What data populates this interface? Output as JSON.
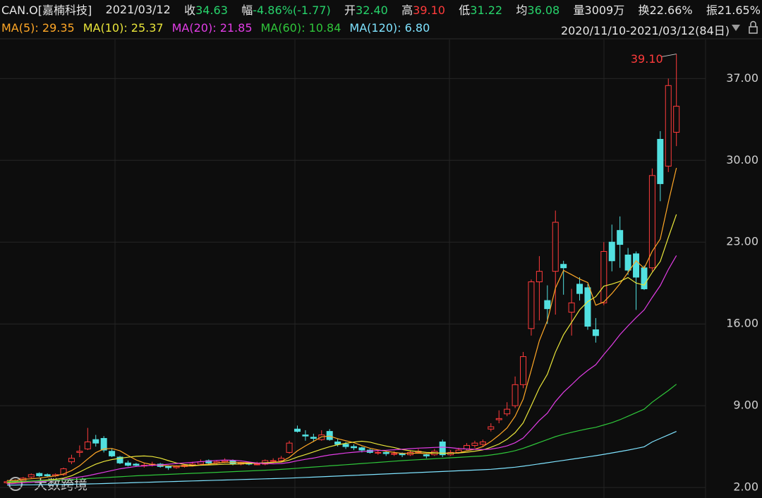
{
  "header": {
    "symbol": "CAN.O[嘉楠科技]",
    "date": "2021/03/12",
    "items": [
      {
        "label": "收",
        "value": "34.63",
        "color": "#27d36b"
      },
      {
        "label": "幅",
        "value": "-4.86%(-1.77)",
        "color": "#27d36b"
      },
      {
        "label": "开",
        "value": "32.40",
        "color": "#27d36b"
      },
      {
        "label": "高",
        "value": "39.10",
        "color": "#ff3b3b"
      },
      {
        "label": "低",
        "value": "31.22",
        "color": "#27d36b"
      },
      {
        "label": "均",
        "value": "36.08",
        "color": "#27d36b"
      },
      {
        "label": "量",
        "value": "3009万",
        "color": "#e6e6e6"
      },
      {
        "label": "换",
        "value": "22.66%",
        "color": "#e6e6e6"
      },
      {
        "label": "振",
        "value": "21.65%",
        "color": "#e6e6e6"
      }
    ]
  },
  "watermark": "大数跨境",
  "chart_data": {
    "type": "candlestick",
    "range": "2020/11/10-2021/03/12(84日)",
    "up_color": "#ff3b3b",
    "down_color": "#52e0e0",
    "max_label": "39.10",
    "ylim": [
      1.1,
      40.1
    ],
    "yticks": [
      {
        "value": 2,
        "label": "2.00"
      },
      {
        "value": 9,
        "label": "9.00"
      },
      {
        "value": 16,
        "label": "16.00"
      },
      {
        "value": 23,
        "label": "23.00"
      },
      {
        "value": 30,
        "label": "30.00"
      },
      {
        "value": 37,
        "label": "37.00"
      }
    ],
    "grid": true,
    "open": [
      2.4,
      2.5,
      2.6,
      2.9,
      3.2,
      3.1,
      3.0,
      3.1,
      4.2,
      5.0,
      5.3,
      6.1,
      6.2,
      5.1,
      4.6,
      4.1,
      4.0,
      3.9,
      3.9,
      4.0,
      3.8,
      3.7,
      3.8,
      3.9,
      4.0,
      4.3,
      4.1,
      4.2,
      4.3,
      4.0,
      4.1,
      4.0,
      4.0,
      4.3,
      4.3,
      5.0,
      7.0,
      6.5,
      6.3,
      6.1,
      6.8,
      5.9,
      5.7,
      5.5,
      5.4,
      5.2,
      5.0,
      5.0,
      4.9,
      4.9,
      4.8,
      5.0,
      4.8,
      4.8,
      5.9,
      4.8,
      5.0,
      5.3,
      5.6,
      5.7,
      7.0,
      7.8,
      8.3,
      9.0,
      10.8,
      15.6,
      19.6,
      18.0,
      20.5,
      21.1,
      17.0,
      19.4,
      19.1,
      15.5,
      17.8,
      23.0,
      24.0,
      21.9,
      22.0,
      20.8,
      20.8,
      31.8,
      29.5,
      32.4
    ],
    "high": [
      2.6,
      2.7,
      2.9,
      3.2,
      3.3,
      3.2,
      3.2,
      3.7,
      4.8,
      5.6,
      7.1,
      6.5,
      6.4,
      5.3,
      4.7,
      4.3,
      4.1,
      4.1,
      4.2,
      4.1,
      3.9,
      3.9,
      4.0,
      4.2,
      4.4,
      4.4,
      4.3,
      4.5,
      4.4,
      4.2,
      4.2,
      4.2,
      4.4,
      4.5,
      4.7,
      6.0,
      7.3,
      6.9,
      6.6,
      6.9,
      7.0,
      6.2,
      5.9,
      5.7,
      5.5,
      5.3,
      5.2,
      5.1,
      5.1,
      5.0,
      5.2,
      5.3,
      4.9,
      5.3,
      6.1,
      5.2,
      5.4,
      5.8,
      6.0,
      6.1,
      7.5,
      8.6,
      9.3,
      11.5,
      13.6,
      19.8,
      21.8,
      19.3,
      25.7,
      21.4,
      19.0,
      20.0,
      19.4,
      16.5,
      23.0,
      24.5,
      25.2,
      22.5,
      22.2,
      21.0,
      29.3,
      32.5,
      37.0,
      39.1
    ],
    "low": [
      2.3,
      2.4,
      2.5,
      2.8,
      2.9,
      2.9,
      2.9,
      3.0,
      4.0,
      4.6,
      5.2,
      5.5,
      5.0,
      4.6,
      4.0,
      3.8,
      3.8,
      3.7,
      3.8,
      3.7,
      3.5,
      3.6,
      3.7,
      3.8,
      3.9,
      4.0,
      4.0,
      4.1,
      3.9,
      3.9,
      3.9,
      3.9,
      3.9,
      4.1,
      4.2,
      4.9,
      6.7,
      6.0,
      5.9,
      6.0,
      6.0,
      5.5,
      5.3,
      5.2,
      5.0,
      4.9,
      4.8,
      4.7,
      4.7,
      4.6,
      4.7,
      4.9,
      4.5,
      4.7,
      4.6,
      4.7,
      4.9,
      5.2,
      5.4,
      5.5,
      6.8,
      7.5,
      8.1,
      8.8,
      10.5,
      15.0,
      16.3,
      16.0,
      16.8,
      18.5,
      15.0,
      18.0,
      15.5,
      14.4,
      17.6,
      20.5,
      20.8,
      20.2,
      17.2,
      18.9,
      20.5,
      26.5,
      29.0,
      31.22
    ],
    "close": [
      2.5,
      2.6,
      2.8,
      3.1,
      3.0,
      3.0,
      3.1,
      3.6,
      4.5,
      5.1,
      5.9,
      5.8,
      5.2,
      4.7,
      4.1,
      3.9,
      3.9,
      3.9,
      4.0,
      3.8,
      3.7,
      3.8,
      3.9,
      4.0,
      4.2,
      4.1,
      4.2,
      4.3,
      4.0,
      4.1,
      4.0,
      4.0,
      4.3,
      4.3,
      4.5,
      5.8,
      6.8,
      6.4,
      6.2,
      6.5,
      6.1,
      5.7,
      5.5,
      5.4,
      5.2,
      5.0,
      5.0,
      4.9,
      4.9,
      4.8,
      5.0,
      5.1,
      4.7,
      5.1,
      4.8,
      5.0,
      5.2,
      5.6,
      5.8,
      5.9,
      7.2,
      7.9,
      8.7,
      10.8,
      13.2,
      19.6,
      20.5,
      17.3,
      24.7,
      20.8,
      17.8,
      18.6,
      15.8,
      15.0,
      22.2,
      21.4,
      22.8,
      20.6,
      20.0,
      19.0,
      28.7,
      28.0,
      36.4,
      34.63
    ],
    "series": [
      {
        "name": "MA(5):",
        "color": "#ffa726",
        "value_label": "29.35",
        "values": [
          2.6,
          2.6,
          2.7,
          2.75,
          2.8,
          2.9,
          3.0,
          3.16,
          3.44,
          3.86,
          4.44,
          4.98,
          5.3,
          5.34,
          5.14,
          4.74,
          4.36,
          4.1,
          3.96,
          3.9,
          3.86,
          3.84,
          3.84,
          3.84,
          3.92,
          4.0,
          4.08,
          4.16,
          4.16,
          4.14,
          4.12,
          4.08,
          4.08,
          4.14,
          4.22,
          4.58,
          5.14,
          5.56,
          5.94,
          6.34,
          6.4,
          6.18,
          6.0,
          5.84,
          5.58,
          5.36,
          5.22,
          5.1,
          5.0,
          4.92,
          4.92,
          4.94,
          4.9,
          4.94,
          4.94,
          4.94,
          4.96,
          5.14,
          5.28,
          5.5,
          5.94,
          6.48,
          7.1,
          8.1,
          9.56,
          12.04,
          14.56,
          16.28,
          19.06,
          20.58,
          20.22,
          19.84,
          19.54,
          17.6,
          17.88,
          18.6,
          19.44,
          20.4,
          21.4,
          20.76,
          22.22,
          23.26,
          26.42,
          29.35
        ]
      },
      {
        "name": "MA(10):",
        "color": "#e9e53a",
        "value_label": "25.37",
        "values": [
          2.4,
          2.45,
          2.5,
          2.55,
          2.6,
          2.65,
          2.7,
          2.8,
          3.0,
          3.33,
          3.67,
          3.99,
          4.23,
          4.39,
          4.5,
          4.59,
          4.67,
          4.7,
          4.65,
          4.52,
          4.3,
          4.1,
          3.97,
          3.9,
          3.91,
          3.93,
          3.96,
          4.0,
          4.0,
          4.03,
          4.06,
          4.08,
          4.12,
          4.15,
          4.18,
          4.35,
          4.61,
          4.82,
          5.04,
          5.28,
          5.49,
          5.66,
          5.78,
          5.89,
          5.96,
          5.88,
          5.7,
          5.55,
          5.42,
          5.25,
          5.14,
          5.08,
          5.0,
          4.97,
          4.93,
          4.93,
          4.95,
          5.02,
          5.11,
          5.22,
          5.44,
          5.72,
          6.12,
          6.69,
          7.53,
          8.99,
          10.52,
          11.69,
          13.58,
          15.07,
          16.13,
          17.2,
          17.91,
          18.33,
          19.23,
          19.41,
          19.64,
          19.97,
          19.5,
          19.32,
          20.41,
          21.35,
          23.41,
          25.37
        ]
      },
      {
        "name": "MA(20):",
        "color": "#e23de6",
        "value_label": "21.85",
        "values": [
          2.3,
          2.35,
          2.4,
          2.45,
          2.5,
          2.55,
          2.6,
          2.7,
          2.8,
          2.9,
          3.0,
          3.15,
          3.3,
          3.45,
          3.6,
          3.7,
          3.8,
          3.85,
          3.9,
          3.93,
          3.99,
          4.05,
          4.1,
          4.15,
          4.21,
          4.26,
          4.32,
          4.35,
          4.33,
          4.28,
          4.18,
          4.09,
          4.05,
          4.03,
          4.05,
          4.14,
          4.29,
          4.41,
          4.52,
          4.66,
          4.78,
          4.87,
          4.95,
          5.02,
          5.07,
          5.12,
          5.16,
          5.19,
          5.23,
          5.27,
          5.32,
          5.37,
          5.39,
          5.43,
          5.45,
          5.41,
          5.33,
          5.29,
          5.27,
          5.24,
          5.29,
          5.4,
          5.56,
          5.83,
          6.23,
          6.96,
          7.74,
          8.36,
          9.35,
          10.15,
          10.79,
          11.46,
          12.02,
          12.51,
          13.38,
          14.2,
          15.08,
          15.83,
          16.54,
          17.2,
          18.27,
          19.28,
          20.66,
          21.85
        ]
      },
      {
        "name": "MA(60):",
        "color": "#2fc63a",
        "value_label": "10.84",
        "values": [
          2.5,
          2.52,
          2.54,
          2.56,
          2.58,
          2.6,
          2.62,
          2.65,
          2.68,
          2.72,
          2.76,
          2.8,
          2.84,
          2.88,
          2.92,
          2.96,
          3.0,
          3.03,
          3.06,
          3.09,
          3.12,
          3.15,
          3.18,
          3.21,
          3.24,
          3.27,
          3.3,
          3.33,
          3.36,
          3.39,
          3.42,
          3.45,
          3.48,
          3.51,
          3.55,
          3.6,
          3.65,
          3.7,
          3.75,
          3.8,
          3.85,
          3.9,
          3.95,
          4.0,
          4.05,
          4.1,
          4.15,
          4.2,
          4.25,
          4.3,
          4.34,
          4.38,
          4.42,
          4.46,
          4.5,
          4.54,
          4.58,
          4.62,
          4.66,
          4.7,
          4.78,
          4.88,
          5.0,
          5.15,
          5.35,
          5.6,
          5.85,
          6.1,
          6.35,
          6.55,
          6.72,
          6.88,
          7.02,
          7.15,
          7.35,
          7.55,
          7.8,
          8.1,
          8.4,
          8.7,
          9.3,
          9.8,
          10.3,
          10.84
        ]
      },
      {
        "name": "MA(120):",
        "color": "#7fe3ff",
        "value_label": "6.80",
        "values": [
          2.2,
          2.21,
          2.22,
          2.23,
          2.24,
          2.25,
          2.26,
          2.27,
          2.28,
          2.29,
          2.3,
          2.32,
          2.34,
          2.36,
          2.38,
          2.4,
          2.42,
          2.44,
          2.46,
          2.48,
          2.5,
          2.52,
          2.54,
          2.56,
          2.58,
          2.6,
          2.62,
          2.64,
          2.66,
          2.68,
          2.7,
          2.72,
          2.74,
          2.76,
          2.78,
          2.8,
          2.83,
          2.86,
          2.89,
          2.92,
          2.95,
          2.98,
          3.01,
          3.04,
          3.07,
          3.1,
          3.13,
          3.16,
          3.19,
          3.22,
          3.25,
          3.28,
          3.31,
          3.34,
          3.37,
          3.4,
          3.43,
          3.46,
          3.49,
          3.52,
          3.56,
          3.61,
          3.67,
          3.74,
          3.82,
          3.92,
          4.02,
          4.12,
          4.22,
          4.32,
          4.42,
          4.52,
          4.62,
          4.72,
          4.84,
          4.96,
          5.08,
          5.2,
          5.34,
          5.48,
          5.9,
          6.2,
          6.5,
          6.8
        ]
      }
    ]
  }
}
